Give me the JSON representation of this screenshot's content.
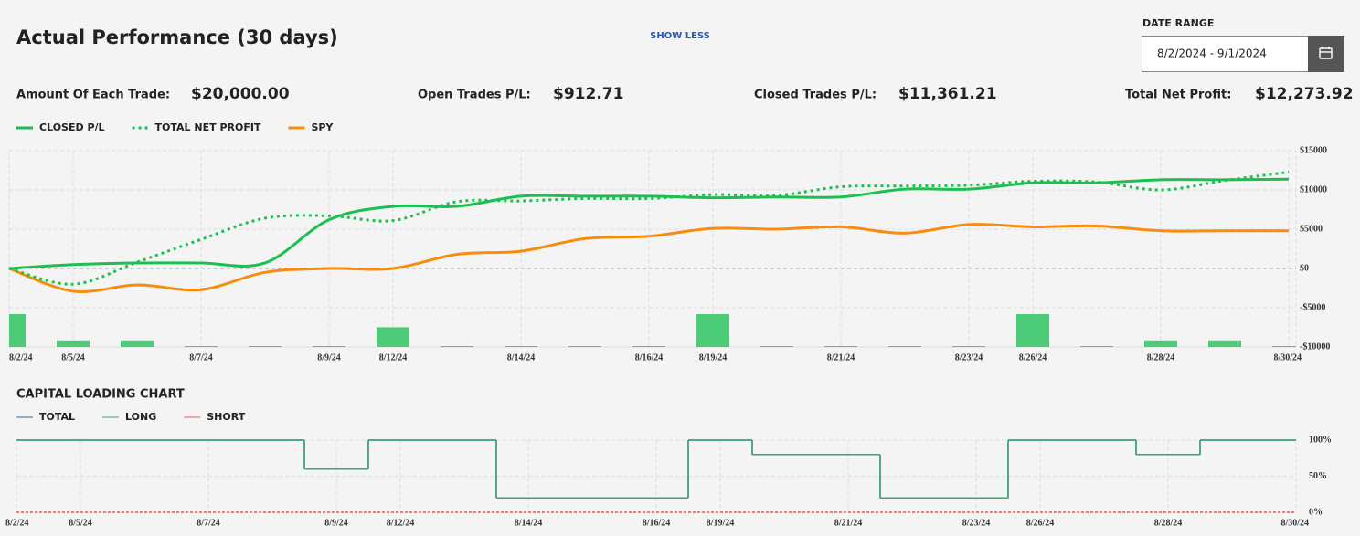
{
  "header": {
    "title": "Actual Performance (30 days)",
    "show_less": "SHOW LESS",
    "date_range_label": "DATE RANGE",
    "date_range": "8/2/2024 - 9/1/2024"
  },
  "stats": [
    {
      "label": "Amount Of Each Trade:",
      "value": "$20,000.00"
    },
    {
      "label": "Open Trades P/L:",
      "value": "$912.71"
    },
    {
      "label": "Closed Trades P/L:",
      "value": "$11,361.21"
    },
    {
      "label": "Total Net Profit:",
      "value": "$12,273.92"
    }
  ],
  "chart_data": [
    {
      "type": "line",
      "categories": [
        "8/2/24",
        "8/5/24",
        null,
        "8/7/24",
        null,
        "8/9/24",
        "8/12/24",
        null,
        "8/14/24",
        null,
        "8/16/24",
        "8/19/24",
        null,
        "8/21/24",
        null,
        "8/23/24",
        "8/26/24",
        null,
        "8/28/24",
        null,
        "8/30/24"
      ],
      "series": [
        {
          "name": "CLOSED P/L",
          "color": "#1dbf50",
          "style": "solid",
          "values": [
            0,
            500,
            700,
            700,
            700,
            6200,
            7900,
            7900,
            9200,
            9200,
            9200,
            9000,
            9100,
            9100,
            10100,
            10100,
            10900,
            10900,
            11300,
            11300,
            11361
          ]
        },
        {
          "name": "TOTAL NET PROFIT",
          "color": "#1dbf50",
          "style": "dotted",
          "values": [
            0,
            -2000,
            800,
            3700,
            6400,
            6700,
            6100,
            8500,
            8600,
            8900,
            8900,
            9400,
            9300,
            10400,
            10500,
            10600,
            11100,
            11000,
            10000,
            11200,
            12274
          ]
        },
        {
          "name": "SPY",
          "color": "#f78c0f",
          "style": "solid",
          "values": [
            0,
            -2900,
            -2100,
            -2700,
            -500,
            0,
            0,
            1800,
            2200,
            3800,
            4100,
            5100,
            5000,
            5300,
            4500,
            5600,
            5300,
            5400,
            4800,
            4800,
            4800
          ]
        }
      ],
      "bars": {
        "color": "#4ccb78",
        "values": [
          5,
          1,
          1,
          0,
          0,
          0,
          3,
          0,
          0,
          0,
          0,
          5,
          0,
          0,
          0,
          0,
          5,
          0,
          1,
          1,
          0
        ]
      },
      "ylim": [
        -10000,
        15000
      ],
      "yticks": [
        {
          "value": 15000,
          "label": "$15000"
        },
        {
          "value": 10000,
          "label": "$10000"
        },
        {
          "value": 5000,
          "label": "$5000"
        },
        {
          "value": 0,
          "label": "$0"
        },
        {
          "value": -5000,
          "label": "-$5000"
        },
        {
          "value": -10000,
          "label": "-$10000"
        }
      ],
      "grid": true
    },
    {
      "type": "step",
      "title": "CAPITAL LOADING CHART",
      "categories": [
        "8/2/24",
        "8/5/24",
        null,
        "8/7/24",
        null,
        "8/9/24",
        "8/12/24",
        null,
        "8/14/24",
        null,
        "8/16/24",
        "8/19/24",
        null,
        "8/21/24",
        null,
        "8/23/24",
        "8/26/24",
        null,
        "8/28/24",
        null,
        "8/30/24"
      ],
      "series": [
        {
          "name": "TOTAL",
          "color": "#3b5ea8",
          "values": [
            100,
            100,
            100,
            100,
            100,
            60,
            100,
            100,
            20,
            20,
            20,
            100,
            80,
            80,
            20,
            20,
            100,
            100,
            80,
            100,
            100
          ]
        },
        {
          "name": "LONG",
          "color": "#3aa86b",
          "values": [
            100,
            100,
            100,
            100,
            100,
            60,
            100,
            100,
            20,
            20,
            20,
            100,
            80,
            80,
            20,
            20,
            100,
            100,
            80,
            100,
            100
          ]
        },
        {
          "name": "SHORT",
          "color": "#e05a5a",
          "values": [
            0,
            0,
            0,
            0,
            0,
            0,
            0,
            0,
            0,
            0,
            0,
            0,
            0,
            0,
            0,
            0,
            0,
            0,
            0,
            0,
            0
          ]
        }
      ],
      "ylim": [
        0,
        100
      ],
      "yticks": [
        {
          "value": 100,
          "label": "100%"
        },
        {
          "value": 50,
          "label": "50%"
        },
        {
          "value": 0,
          "label": "0%"
        }
      ],
      "grid": true
    }
  ]
}
